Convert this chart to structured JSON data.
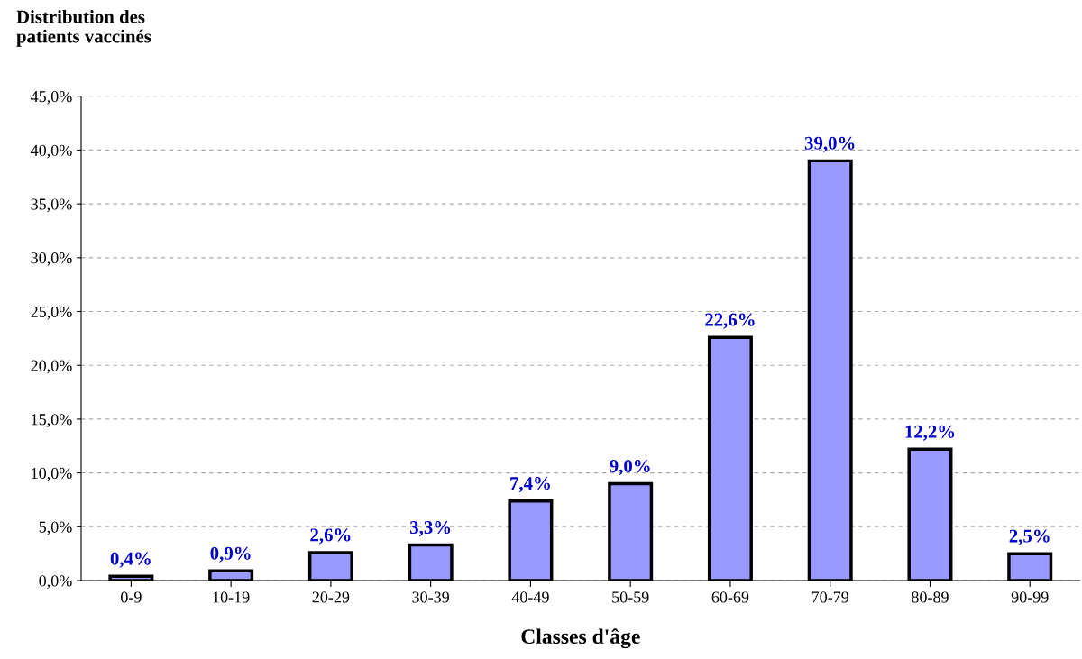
{
  "chart_data": {
    "type": "bar",
    "title": "Distribution des\npatients vaccinés",
    "xlabel": "Classes d'âge",
    "categories": [
      "0-9",
      "10-19",
      "20-29",
      "30-39",
      "40-49",
      "50-59",
      "60-69",
      "70-79",
      "80-89",
      "90-99"
    ],
    "values": [
      0.4,
      0.9,
      2.6,
      3.3,
      7.4,
      9.0,
      22.6,
      39.0,
      12.2,
      2.5
    ],
    "value_labels": [
      "0,4%",
      "0,9%",
      "2,6%",
      "3,3%",
      "7,4%",
      "9,0%",
      "22,6%",
      "39,0%",
      "12,2%",
      "2,5%"
    ],
    "color": "#9999ff",
    "ylim": [
      0,
      45
    ],
    "yticks": [
      {
        "value": 0,
        "label": "0,0%"
      },
      {
        "value": 5,
        "label": "5,0%"
      },
      {
        "value": 10,
        "label": "10,0%"
      },
      {
        "value": 15,
        "label": "15,0%"
      },
      {
        "value": 20,
        "label": "20,0%"
      },
      {
        "value": 25,
        "label": "25,0%"
      },
      {
        "value": 30,
        "label": "30,0%"
      },
      {
        "value": 35,
        "label": "35,0%"
      },
      {
        "value": 40,
        "label": "40,0%"
      },
      {
        "value": 45,
        "label": "45,0%"
      }
    ],
    "grid": "y"
  }
}
